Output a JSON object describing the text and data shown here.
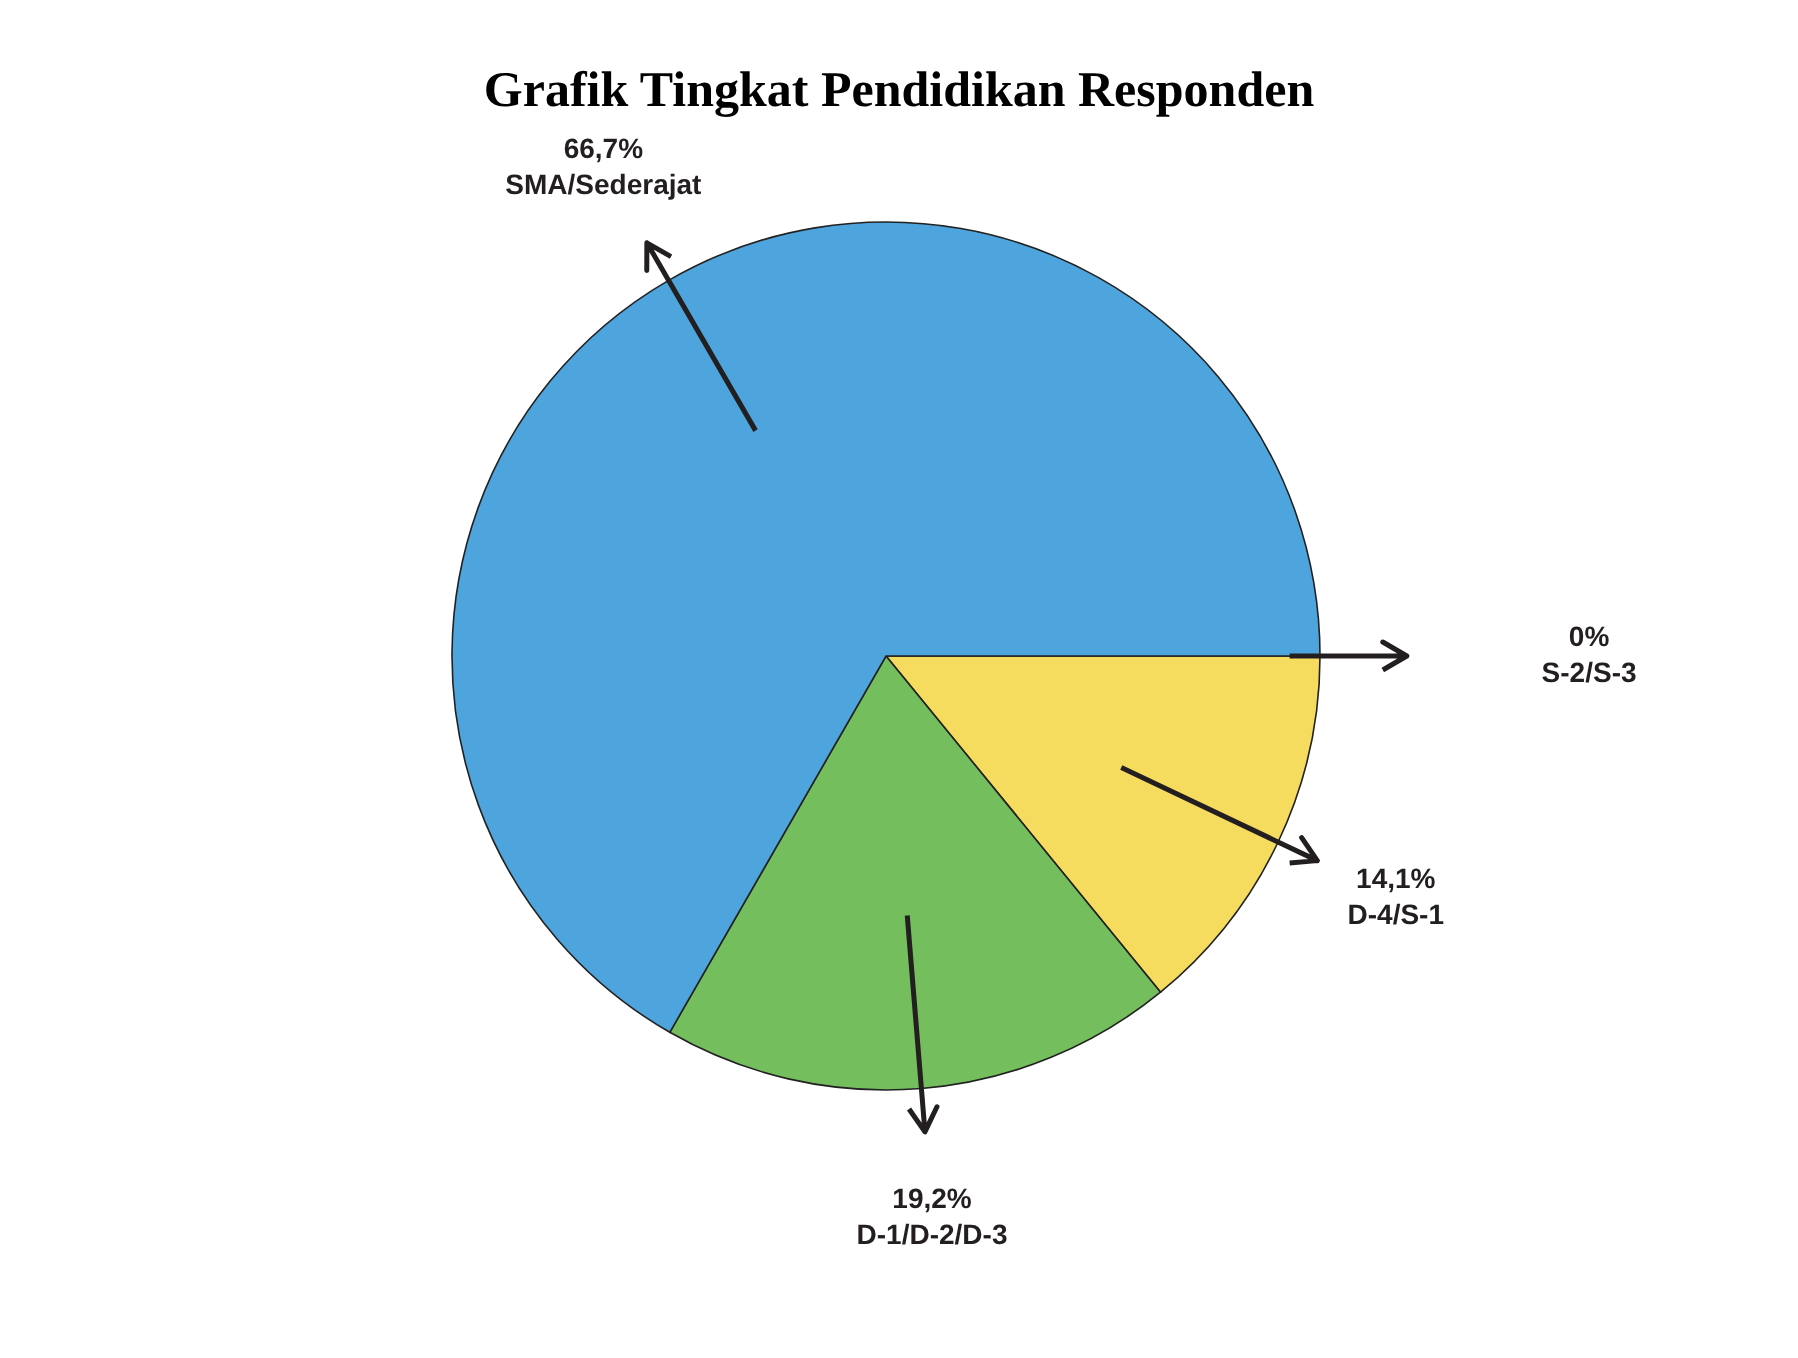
{
  "chart_data": {
    "type": "pie",
    "title": "Grafik Tingkat Pendidikan Responden",
    "categories": [
      "S-2/S-3",
      "D-4/S-1",
      "D-1/D-2/D-3",
      "SMA/Sederajat"
    ],
    "values": [
      0,
      14.1,
      19.2,
      66.7
    ],
    "value_labels": [
      "0%",
      "14,1%",
      "19,2%",
      "66,7%"
    ],
    "colors": [
      "#e8e8e8",
      "#f5dc5e",
      "#74be5d",
      "#4ea5dd"
    ],
    "legend": false
  }
}
